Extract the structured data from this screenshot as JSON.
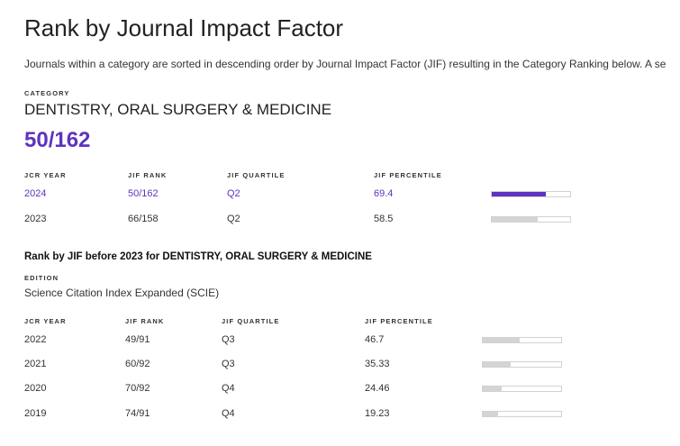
{
  "title": "Rank by Journal Impact Factor",
  "intro": "Journals within a category are sorted in descending order by Journal Impact Factor (JIF) resulting in the Category Ranking below. A se",
  "category": {
    "label": "CATEGORY",
    "name": "DENTISTRY, ORAL SURGERY & MEDICINE",
    "rank": "50/162"
  },
  "colors": {
    "accent": "#5e33bf",
    "bar_inactive": "#d4d4d4"
  },
  "current_table": {
    "headers": [
      "JCR YEAR",
      "JIF RANK",
      "JIF QUARTILE",
      "JIF PERCENTILE"
    ],
    "rows": [
      {
        "year": "2024",
        "rank": "50/162",
        "quartile": "Q2",
        "percentile": "69.4",
        "percentile_value": 69.4,
        "highlight": true
      },
      {
        "year": "2023",
        "rank": "66/158",
        "quartile": "Q2",
        "percentile": "58.5",
        "percentile_value": 58.5,
        "highlight": false
      }
    ]
  },
  "before_2023": {
    "title": "Rank by JIF before 2023 for DENTISTRY, ORAL SURGERY & MEDICINE",
    "edition_label": "EDITION",
    "edition": "Science Citation Index Expanded (SCIE)",
    "headers": [
      "JCR YEAR",
      "JIF RANK",
      "JIF QUARTILE",
      "JIF PERCENTILE"
    ],
    "rows": [
      {
        "year": "2022",
        "rank": "49/91",
        "quartile": "Q3",
        "percentile": "46.7",
        "percentile_value": 46.7
      },
      {
        "year": "2021",
        "rank": "60/92",
        "quartile": "Q3",
        "percentile": "35.33",
        "percentile_value": 35.33
      },
      {
        "year": "2020",
        "rank": "70/92",
        "quartile": "Q4",
        "percentile": "24.46",
        "percentile_value": 24.46
      },
      {
        "year": "2019",
        "rank": "74/91",
        "quartile": "Q4",
        "percentile": "19.23",
        "percentile_value": 19.23
      }
    ]
  }
}
